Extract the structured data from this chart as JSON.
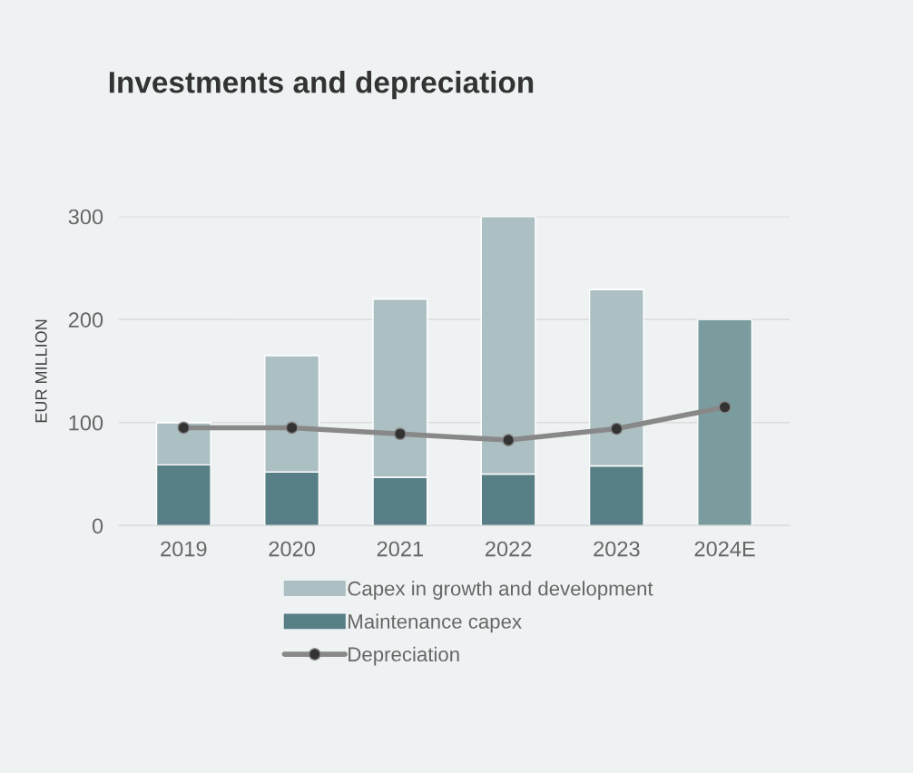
{
  "chart_data": {
    "type": "bar",
    "title": "Investments and depreciation",
    "ylabel": "EUR MILLION",
    "categories": [
      "2019",
      "2020",
      "2021",
      "2022",
      "2023",
      "2024E"
    ],
    "stacked": true,
    "series": [
      {
        "name": "Maintenance capex",
        "color": "#587f85",
        "values": [
          59,
          52,
          47,
          50,
          58,
          null
        ]
      },
      {
        "name": "Capex in growth and development",
        "color": "#acbfc3",
        "values": [
          41,
          113,
          173,
          250,
          171,
          null
        ]
      },
      {
        "color": "#7b9c9f",
        "values": [
          null,
          null,
          null,
          null,
          null,
          200
        ]
      },
      {
        "name": "Depreciation",
        "type": "line",
        "color": "#888888",
        "marker": "circle",
        "values": [
          95,
          95,
          89,
          83,
          94,
          115
        ]
      }
    ],
    "ylim": [
      0,
      300
    ],
    "yticks": [
      0,
      100,
      200,
      300
    ],
    "grid": "y",
    "legend": "bottom"
  }
}
